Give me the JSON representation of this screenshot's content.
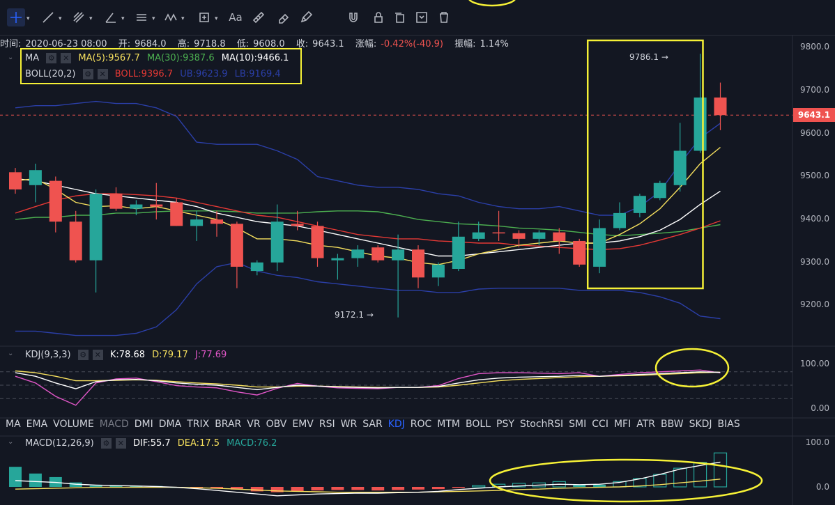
{
  "toolbar": {
    "tools": [
      "crosshair-icon",
      "trend-line-icon",
      "fib-icon",
      "angle-icon",
      "horizontal-lines-icon",
      "wave-icon",
      "measure-icon",
      "text-icon",
      "ruler-icon",
      "eraser-icon",
      "pencil-icon",
      "magnet-icon",
      "lock-icon",
      "copy-icon",
      "screenshot-icon",
      "trash-icon"
    ],
    "text_tool": "Aa"
  },
  "info": {
    "time_label": "时间:",
    "time": "2020-06-23 08:00",
    "open_label": "开:",
    "open": "9684.0",
    "high_label": "高:",
    "high": "9718.8",
    "low_label": "低:",
    "low": "9608.0",
    "close_label": "收:",
    "close": "9643.1",
    "change_label": "涨幅:",
    "change": "-0.42%(-40.9)",
    "amp_label": "振幅:",
    "amp": "1.14%"
  },
  "legend": {
    "ma_name": "MA",
    "ma5": "MA(5):9567.7",
    "ma30": "MA(30):9387.6",
    "ma10": "MA(10):9466.1",
    "boll_name": "BOLL(20,2)",
    "boll": "BOLL:9396.7",
    "ub": "UB:9623.9",
    "lb": "LB:9169.4"
  },
  "colors": {
    "up": "#26a69a",
    "down": "#ef5350",
    "ma5": "#f6e05e",
    "ma10": "#ffffff",
    "ma30": "#4caf50",
    "boll": "#e53935",
    "ub": "#2b3fa8",
    "lb": "#2b3fa8",
    "k": "#ffffff",
    "d": "#f6e05e",
    "j": "#e056c7",
    "highlight": "#f6f136",
    "dif": "#ffffff",
    "dea": "#f6e05e"
  },
  "price_axis": {
    "ticks": [
      "9800.0",
      "9700.0",
      "9600.0",
      "9500.0",
      "9400.0",
      "9300.0",
      "9200.0"
    ],
    "current": "9643.1"
  },
  "annotations": {
    "high_mark": "9786.1",
    "low_mark": "9172.1"
  },
  "kdj": {
    "title": "KDJ(9,3,3)",
    "k": "K:78.68",
    "d": "D:79.17",
    "j": "J:77.69",
    "ticks": [
      "100.00",
      "0.00"
    ]
  },
  "indicators": [
    "MA",
    "EMA",
    "VOLUME",
    "MACD",
    "DMI",
    "DMA",
    "TRIX",
    "BRAR",
    "VR",
    "OBV",
    "EMV",
    "RSI",
    "WR",
    "SAR",
    "KDJ",
    "ROC",
    "MTM",
    "BOLL",
    "PSY",
    "StochRSI",
    "SMI",
    "CCI",
    "MFI",
    "ATR",
    "BBW",
    "SKDJ",
    "BIAS"
  ],
  "active_indicator": "KDJ",
  "muted_indicator": "MACD",
  "macd": {
    "title": "MACD(12,26,9)",
    "dif": "DIF:55.7",
    "dea": "DEA:17.5",
    "macd": "MACD:76.2",
    "ticks": [
      "100.0",
      "0.0"
    ]
  },
  "chart_data": {
    "type": "candlestick",
    "ylim": [
      9105,
      9830
    ],
    "candles": [
      {
        "o": 9510,
        "h": 9520,
        "l": 9460,
        "c": 9470
      },
      {
        "o": 9480,
        "h": 9530,
        "l": 9440,
        "c": 9515
      },
      {
        "o": 9490,
        "h": 9500,
        "l": 9370,
        "c": 9395
      },
      {
        "o": 9395,
        "h": 9420,
        "l": 9300,
        "c": 9305
      },
      {
        "o": 9305,
        "h": 9470,
        "l": 9230,
        "c": 9460
      },
      {
        "o": 9460,
        "h": 9475,
        "l": 9420,
        "c": 9425
      },
      {
        "o": 9425,
        "h": 9445,
        "l": 9410,
        "c": 9435
      },
      {
        "o": 9435,
        "h": 9485,
        "l": 9400,
        "c": 9430
      },
      {
        "o": 9440,
        "h": 9450,
        "l": 9385,
        "c": 9385
      },
      {
        "o": 9385,
        "h": 9420,
        "l": 9350,
        "c": 9400
      },
      {
        "o": 9400,
        "h": 9420,
        "l": 9360,
        "c": 9390
      },
      {
        "o": 9390,
        "h": 9395,
        "l": 9240,
        "c": 9290
      },
      {
        "o": 9280,
        "h": 9305,
        "l": 9270,
        "c": 9300
      },
      {
        "o": 9300,
        "h": 9435,
        "l": 9280,
        "c": 9395
      },
      {
        "o": 9390,
        "h": 9420,
        "l": 9375,
        "c": 9385
      },
      {
        "o": 9385,
        "h": 9395,
        "l": 9290,
        "c": 9310
      },
      {
        "o": 9305,
        "h": 9320,
        "l": 9260,
        "c": 9310
      },
      {
        "o": 9310,
        "h": 9340,
        "l": 9290,
        "c": 9330
      },
      {
        "o": 9335,
        "h": 9340,
        "l": 9300,
        "c": 9305
      },
      {
        "o": 9305,
        "h": 9365,
        "l": 9172,
        "c": 9330
      },
      {
        "o": 9330,
        "h": 9340,
        "l": 9240,
        "c": 9265
      },
      {
        "o": 9265,
        "h": 9300,
        "l": 9245,
        "c": 9295
      },
      {
        "o": 9285,
        "h": 9395,
        "l": 9280,
        "c": 9360
      },
      {
        "o": 9355,
        "h": 9395,
        "l": 9350,
        "c": 9370
      },
      {
        "o": 9370,
        "h": 9420,
        "l": 9350,
        "c": 9368
      },
      {
        "o": 9368,
        "h": 9375,
        "l": 9335,
        "c": 9355
      },
      {
        "o": 9355,
        "h": 9375,
        "l": 9340,
        "c": 9370
      },
      {
        "o": 9370,
        "h": 9380,
        "l": 9320,
        "c": 9350
      },
      {
        "o": 9350,
        "h": 9355,
        "l": 9290,
        "c": 9295
      },
      {
        "o": 9290,
        "h": 9400,
        "l": 9275,
        "c": 9380
      },
      {
        "o": 9380,
        "h": 9440,
        "l": 9375,
        "c": 9415
      },
      {
        "o": 9415,
        "h": 9460,
        "l": 9405,
        "c": 9455
      },
      {
        "o": 9450,
        "h": 9490,
        "l": 9445,
        "c": 9485
      },
      {
        "o": 9480,
        "h": 9625,
        "l": 9465,
        "c": 9560
      },
      {
        "o": 9560,
        "h": 9786.1,
        "l": 9555,
        "c": 9684
      },
      {
        "o": 9684,
        "h": 9718.8,
        "l": 9608,
        "c": 9643.1
      }
    ],
    "ma5": [
      9490,
      9495,
      9470,
      9440,
      9430,
      9432,
      9425,
      9430,
      9420,
      9410,
      9400,
      9380,
      9355,
      9355,
      9350,
      9340,
      9335,
      9325,
      9315,
      9310,
      9300,
      9295,
      9305,
      9320,
      9330,
      9340,
      9345,
      9350,
      9345,
      9345,
      9365,
      9390,
      9425,
      9475,
      9530,
      9568
    ],
    "ma10": [
      9495,
      9490,
      9480,
      9470,
      9460,
      9455,
      9450,
      9445,
      9440,
      9430,
      9415,
      9405,
      9395,
      9390,
      9385,
      9375,
      9365,
      9355,
      9345,
      9335,
      9325,
      9315,
      9315,
      9320,
      9325,
      9330,
      9335,
      9340,
      9345,
      9345,
      9350,
      9360,
      9375,
      9400,
      9435,
      9466
    ],
    "ma30": [
      9400,
      9405,
      9405,
      9410,
      9410,
      9415,
      9415,
      9418,
      9420,
      9420,
      9420,
      9418,
      9415,
      9415,
      9415,
      9418,
      9420,
      9420,
      9418,
      9410,
      9400,
      9395,
      9390,
      9388,
      9385,
      9380,
      9378,
      9375,
      9370,
      9365,
      9362,
      9365,
      9368,
      9372,
      9380,
      9388
    ],
    "boll": [
      9415,
      9430,
      9445,
      9455,
      9460,
      9460,
      9458,
      9455,
      9450,
      9440,
      9430,
      9420,
      9410,
      9405,
      9395,
      9385,
      9375,
      9365,
      9360,
      9355,
      9355,
      9350,
      9348,
      9345,
      9345,
      9340,
      9338,
      9335,
      9332,
      9330,
      9332,
      9340,
      9352,
      9365,
      9380,
      9397
    ],
    "ub": [
      9660,
      9665,
      9665,
      9670,
      9675,
      9670,
      9670,
      9660,
      9640,
      9580,
      9575,
      9575,
      9575,
      9560,
      9540,
      9500,
      9490,
      9480,
      9475,
      9475,
      9470,
      9460,
      9455,
      9440,
      9430,
      9425,
      9425,
      9430,
      9420,
      9410,
      9410,
      9430,
      9465,
      9530,
      9590,
      9624
    ],
    "lb": [
      9140,
      9140,
      9135,
      9130,
      9130,
      9130,
      9135,
      9150,
      9190,
      9250,
      9290,
      9300,
      9280,
      9270,
      9265,
      9255,
      9250,
      9245,
      9240,
      9235,
      9235,
      9230,
      9230,
      9238,
      9240,
      9240,
      9240,
      9240,
      9235,
      9235,
      9235,
      9230,
      9220,
      9205,
      9175,
      9169
    ],
    "k": [
      78,
      70,
      55,
      42,
      58,
      62,
      63,
      60,
      55,
      52,
      50,
      45,
      40,
      45,
      50,
      48,
      46,
      45,
      44,
      45,
      45,
      47,
      55,
      62,
      66,
      68,
      69,
      70,
      72,
      70,
      72,
      74,
      76,
      78,
      80,
      78.68
    ],
    "d": [
      82,
      78,
      70,
      60,
      60,
      61,
      62,
      61,
      58,
      55,
      53,
      50,
      46,
      46,
      48,
      48,
      47,
      46,
      45,
      45,
      45,
      46,
      50,
      55,
      60,
      63,
      65,
      67,
      69,
      70,
      71,
      72,
      74,
      76,
      78,
      79.17
    ],
    "j": [
      70,
      55,
      25,
      5,
      55,
      64,
      66,
      58,
      49,
      46,
      44,
      35,
      28,
      43,
      54,
      48,
      44,
      43,
      42,
      45,
      45,
      49,
      65,
      76,
      78,
      78,
      77,
      76,
      78,
      70,
      74,
      78,
      80,
      82,
      84,
      77.69
    ],
    "macd": [
      45,
      30,
      22,
      10,
      3,
      3,
      2,
      2,
      0,
      -2,
      -4,
      -6,
      -10,
      -12,
      -10,
      -8,
      -7,
      -7,
      -8,
      -7,
      -6,
      -5,
      -2,
      3,
      6,
      8,
      9,
      12,
      5,
      5,
      12,
      19,
      28,
      42,
      55,
      76.2
    ],
    "dif": [
      14,
      12,
      10,
      6,
      4,
      3,
      2,
      1,
      -1,
      -4,
      -8,
      -12,
      -16,
      -20,
      -18,
      -16,
      -15,
      -14,
      -14,
      -13,
      -12,
      -10,
      -6,
      -3,
      0,
      2,
      4,
      6,
      5,
      6,
      10,
      18,
      28,
      40,
      48,
      55.7
    ],
    "dea": [
      -5,
      -4,
      -3,
      -2,
      -1,
      -1,
      -1,
      -1,
      -1,
      -2,
      -3,
      -5,
      -7,
      -9,
      -10,
      -11,
      -12,
      -12,
      -12,
      -12,
      -12,
      -11,
      -10,
      -9,
      -8,
      -6,
      -5,
      -3,
      -2,
      -1,
      0,
      2,
      5,
      9,
      13,
      17.5
    ]
  }
}
